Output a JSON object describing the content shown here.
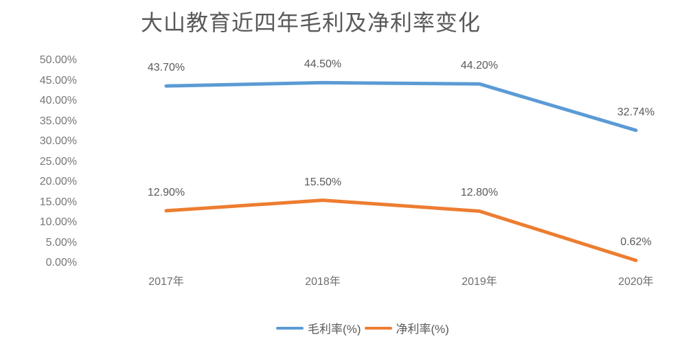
{
  "chart_data": {
    "type": "line",
    "title": "大山教育近四年毛利及净利率变化",
    "categories": [
      "2017年",
      "2018年",
      "2019年",
      "2020年"
    ],
    "series": [
      {
        "id": "gross-margin",
        "name": "毛利率(%)",
        "color": "#5B9BD5",
        "values": [
          43.7,
          44.5,
          44.2,
          32.74
        ],
        "data_labels": [
          "43.70%",
          "44.50%",
          "44.20%",
          "32.74%"
        ]
      },
      {
        "id": "net-margin",
        "name": "净利率(%)",
        "color": "#ED7D31",
        "values": [
          12.9,
          15.5,
          12.8,
          0.62
        ],
        "data_labels": [
          "12.90%",
          "15.50%",
          "12.80%",
          "0.62%"
        ]
      }
    ],
    "ylim": [
      0,
      50
    ],
    "ytick_step": 5,
    "ytick_labels": [
      "0.00%",
      "5.00%",
      "10.00%",
      "15.00%",
      "20.00%",
      "25.00%",
      "30.00%",
      "35.00%",
      "40.00%",
      "45.00%",
      "50.00%"
    ],
    "xlabel": "",
    "ylabel": "",
    "grid": false,
    "legend_position": "bottom"
  },
  "colors": {
    "background": "#ffffff",
    "title_text": "#595959",
    "axis_text": "#737373",
    "data_label_text": "#595959",
    "series_blue": "#5B9BD5",
    "series_orange": "#ED7D31"
  }
}
